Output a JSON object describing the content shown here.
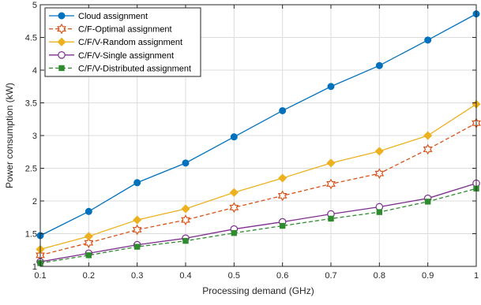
{
  "chart_data": {
    "type": "line",
    "title": "",
    "xlabel": "Processing demand (GHz)",
    "ylabel": "Power consumption (kW)",
    "xlim": [
      0.1,
      1
    ],
    "ylim": [
      1,
      5
    ],
    "xticks": [
      0.1,
      0.2,
      0.3,
      0.4,
      0.5,
      0.6,
      0.7,
      0.8,
      0.9,
      1
    ],
    "xtick_labels": [
      "0.1",
      "0.2",
      "0.3",
      "0.4",
      "0.5",
      "0.6",
      "0.7",
      "0.8",
      "0.9",
      "1"
    ],
    "yticks": [
      1,
      1.5,
      2,
      2.5,
      3,
      3.5,
      4,
      4.5,
      5
    ],
    "ytick_labels": [
      "1",
      "1.5",
      "2",
      "2.5",
      "3",
      "3.5",
      "4",
      "4.5",
      "5"
    ],
    "grid": true,
    "legend_position": "top-left",
    "x": [
      0.1,
      0.2,
      0.3,
      0.4,
      0.5,
      0.6,
      0.7,
      0.8,
      0.9,
      1
    ],
    "series": [
      {
        "name": "Cloud assignment",
        "color": "#0072BD",
        "line_style": "solid",
        "marker": "circle-filled",
        "values": [
          1.47,
          1.84,
          2.28,
          2.58,
          2.98,
          3.38,
          3.75,
          4.07,
          4.46,
          4.86
        ]
      },
      {
        "name": "C/F-Optimal assignment",
        "color": "#D95319",
        "line_style": "dashed",
        "marker": "hexagram-open",
        "values": [
          1.17,
          1.36,
          1.56,
          1.71,
          1.9,
          2.08,
          2.26,
          2.42,
          2.79,
          3.19
        ]
      },
      {
        "name": "C/F/V-Random assignment",
        "color": "#EDB120",
        "line_style": "solid",
        "marker": "diamond-filled",
        "values": [
          1.26,
          1.46,
          1.71,
          1.88,
          2.13,
          2.35,
          2.58,
          2.76,
          3.0,
          3.48
        ]
      },
      {
        "name": "C/F/V-Single assignment",
        "color": "#7E2F8E",
        "line_style": "solid",
        "marker": "circle-open",
        "values": [
          1.07,
          1.2,
          1.33,
          1.43,
          1.57,
          1.68,
          1.8,
          1.91,
          2.04,
          2.27
        ]
      },
      {
        "name": "C/F/V-Distributed assignment",
        "color": "#2E8B2E",
        "line_style": "dashed",
        "marker": "square-filled",
        "values": [
          1.05,
          1.17,
          1.3,
          1.39,
          1.51,
          1.62,
          1.73,
          1.83,
          1.99,
          2.19
        ]
      }
    ]
  }
}
